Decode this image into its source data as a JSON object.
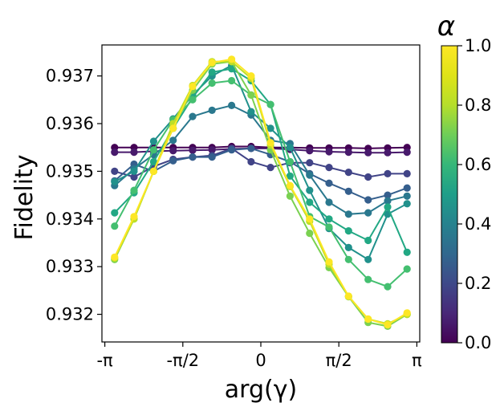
{
  "chart_data": {
    "type": "line",
    "xlabel": "arg(γ)",
    "ylabel": "Fidelity",
    "x_ticks": [
      "-π",
      "-π/2",
      "0",
      "π/2",
      "π"
    ],
    "y_ticks": [
      "0.932",
      "0.933",
      "0.934",
      "0.935",
      "0.936",
      "0.937"
    ],
    "xlim": [
      -3.2,
      3.2
    ],
    "ylim": [
      0.93142,
      0.93765
    ],
    "colorbar": {
      "label": "α",
      "ticks": [
        "0.0",
        "0.2",
        "0.4",
        "0.6",
        "0.8",
        "1.0"
      ],
      "range": [
        0.0,
        1.0
      ]
    },
    "x": [
      -2.945,
      -2.553,
      -2.16,
      -1.767,
      -1.374,
      -0.982,
      -0.589,
      -0.196,
      0.196,
      0.589,
      0.982,
      1.374,
      1.767,
      2.16,
      2.553,
      2.945
    ],
    "series": [
      {
        "name": "α=0.0",
        "alpha": 0.0,
        "color": "#440154",
        "values": [
          0.9355,
          0.9355,
          0.9355,
          0.9355,
          0.9355,
          0.9355,
          0.93552,
          0.93552,
          0.9355,
          0.9355,
          0.93549,
          0.93549,
          0.93549,
          0.93548,
          0.93549,
          0.9355
        ]
      },
      {
        "name": "α=0.067",
        "alpha": 0.067,
        "color": "#481a6c",
        "values": [
          0.9354,
          0.9354,
          0.93542,
          0.93543,
          0.93544,
          0.93545,
          0.93547,
          0.93548,
          0.93548,
          0.93546,
          0.93543,
          0.93541,
          0.9354,
          0.93539,
          0.93539,
          0.9354
        ]
      },
      {
        "name": "α=0.2",
        "alpha": 0.2,
        "color": "#414487",
        "values": [
          0.935,
          0.93488,
          0.9351,
          0.93525,
          0.9353,
          0.93533,
          0.93548,
          0.9352,
          0.93508,
          0.93518,
          0.93518,
          0.93508,
          0.93498,
          0.93488,
          0.93495,
          0.93495
        ]
      },
      {
        "name": "α=0.3",
        "alpha": 0.3,
        "color": "#355f8d",
        "values": [
          0.9348,
          0.93515,
          0.935,
          0.93522,
          0.9353,
          0.9353,
          0.93545,
          0.93548,
          0.93535,
          0.9352,
          0.93495,
          0.93475,
          0.93458,
          0.9344,
          0.9345,
          0.93465
        ]
      },
      {
        "name": "α=0.4",
        "alpha": 0.4,
        "color": "#2a788e",
        "values": [
          0.9347,
          0.93505,
          0.93535,
          0.93565,
          0.93615,
          0.93628,
          0.93638,
          0.93618,
          0.93565,
          0.93558,
          0.93492,
          0.93435,
          0.9341,
          0.93413,
          0.93438,
          0.93448
        ]
      },
      {
        "name": "α=0.5",
        "alpha": 0.5,
        "color": "#21918c",
        "values": [
          0.93478,
          0.935,
          0.93563,
          0.9361,
          0.9366,
          0.937,
          0.93722,
          0.93625,
          0.9359,
          0.9355,
          0.9346,
          0.9338,
          0.9334,
          0.93315,
          0.9341,
          0.93432
        ]
      },
      {
        "name": "α=0.6",
        "alpha": 0.6,
        "color": "#22a884",
        "values": [
          0.93413,
          0.93455,
          0.9352,
          0.9359,
          0.93655,
          0.93708,
          0.93715,
          0.9369,
          0.9364,
          0.9349,
          0.93435,
          0.934,
          0.93375,
          0.93355,
          0.93425,
          0.9333
        ]
      },
      {
        "name": "α=0.7",
        "alpha": 0.7,
        "color": "#44bf70",
        "values": [
          0.93385,
          0.9346,
          0.93545,
          0.93608,
          0.9365,
          0.93685,
          0.9369,
          0.9366,
          0.9364,
          0.9352,
          0.93405,
          0.93383,
          0.93315,
          0.93273,
          0.93258,
          0.93295
        ]
      },
      {
        "name": "α=0.8",
        "alpha": 0.8,
        "color": "#7ad151",
        "values": [
          0.93315,
          0.934,
          0.935,
          0.9359,
          0.9367,
          0.93725,
          0.9373,
          0.9366,
          0.93545,
          0.93448,
          0.9337,
          0.93298,
          0.93237,
          0.93183,
          0.93175,
          0.932
        ]
      },
      {
        "name": "α=0.9",
        "alpha": 0.9,
        "color": "#bddf26",
        "values": [
          0.93318,
          0.934,
          0.935,
          0.936,
          0.9368,
          0.9373,
          0.9373,
          0.93695,
          0.93555,
          0.93468,
          0.93395,
          0.93305,
          0.93238,
          0.9319,
          0.9318,
          0.932
        ]
      },
      {
        "name": "α=1.0",
        "alpha": 1.0,
        "color": "#fde725",
        "values": [
          0.9332,
          0.93405,
          0.935,
          0.9359,
          0.93678,
          0.93728,
          0.93735,
          0.937,
          0.9356,
          0.9347,
          0.934,
          0.9331,
          0.93238,
          0.9319,
          0.93178,
          0.93203
        ]
      }
    ]
  }
}
